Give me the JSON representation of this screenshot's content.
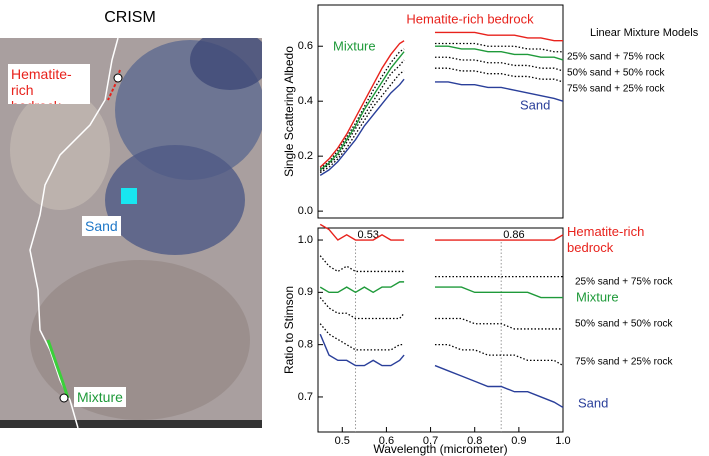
{
  "image": {
    "title": "CRISM",
    "labels": [
      {
        "text": "Hematite-rich bedrock",
        "color": "#e8221c"
      },
      {
        "text": "Sand",
        "color": "#1f78c8"
      },
      {
        "text": "Mixture",
        "color": "#1f9a3a"
      }
    ]
  },
  "chart_data": [
    {
      "type": "line",
      "ylabel": "Single Scattering Albedo",
      "legend_title": "Linear Mixture Models",
      "x": [
        0.45,
        0.47,
        0.49,
        0.51,
        0.53,
        0.55,
        0.57,
        0.59,
        0.61,
        0.63,
        0.64,
        0.675,
        0.71,
        0.74,
        0.77,
        0.8,
        0.83,
        0.86,
        0.89,
        0.92,
        0.95,
        0.98,
        1.0
      ],
      "xlim": [
        0.445,
        1.0
      ],
      "ylim": [
        -0.025,
        0.75
      ],
      "yticks": [
        {
          "value": 0,
          "label": "0.0"
        },
        0.2,
        0.4,
        0.6
      ],
      "series": [
        {
          "name": "Hematite-rich bedrock",
          "color": "#e8221c",
          "line_style": "solid",
          "values": [
            0.16,
            0.19,
            0.23,
            0.28,
            0.34,
            0.4,
            0.46,
            0.52,
            0.57,
            0.61,
            0.62,
            null,
            0.65,
            0.65,
            0.65,
            0.65,
            0.64,
            0.64,
            0.64,
            0.63,
            0.63,
            0.62,
            0.62
          ]
        },
        {
          "name": "25% sand + 75% rock",
          "color": "#000000",
          "line_style": "dotted",
          "values": [
            0.155,
            0.18,
            0.22,
            0.27,
            0.32,
            0.38,
            0.44,
            0.49,
            0.54,
            0.58,
            0.59,
            null,
            0.61,
            0.61,
            0.61,
            0.61,
            0.6,
            0.6,
            0.6,
            0.59,
            0.59,
            0.58,
            0.58
          ]
        },
        {
          "name": "Mixture",
          "color": "#1f9a3a",
          "line_style": "solid",
          "values": [
            0.15,
            0.175,
            0.21,
            0.26,
            0.31,
            0.37,
            0.42,
            0.47,
            0.52,
            0.56,
            0.58,
            null,
            0.6,
            0.6,
            0.59,
            0.59,
            0.58,
            0.58,
            0.57,
            0.57,
            0.56,
            0.56,
            0.55
          ]
        },
        {
          "name": "50% sand + 50% rock",
          "color": "#000000",
          "line_style": "dotted",
          "values": [
            0.145,
            0.17,
            0.2,
            0.25,
            0.3,
            0.35,
            0.4,
            0.45,
            0.5,
            0.53,
            0.55,
            null,
            0.56,
            0.56,
            0.55,
            0.55,
            0.54,
            0.54,
            0.53,
            0.53,
            0.52,
            0.52,
            0.51
          ]
        },
        {
          "name": "75% sand + 25% rock",
          "color": "#000000",
          "line_style": "dotted",
          "values": [
            0.14,
            0.16,
            0.19,
            0.23,
            0.28,
            0.33,
            0.38,
            0.42,
            0.46,
            0.5,
            0.51,
            null,
            0.52,
            0.52,
            0.51,
            0.51,
            0.5,
            0.5,
            0.49,
            0.49,
            0.48,
            0.48,
            0.47
          ]
        },
        {
          "name": "Sand",
          "color": "#2a3f9a",
          "line_style": "solid",
          "values": [
            0.13,
            0.15,
            0.18,
            0.22,
            0.26,
            0.31,
            0.35,
            0.39,
            0.43,
            0.46,
            0.48,
            null,
            0.47,
            0.47,
            0.46,
            0.46,
            0.45,
            0.45,
            0.44,
            0.43,
            0.42,
            0.41,
            0.4
          ]
        }
      ]
    },
    {
      "type": "line",
      "ylabel": "Ratio to Stimson",
      "xlabel": "Wavelength (micrometer)",
      "x": [
        0.45,
        0.47,
        0.49,
        0.51,
        0.53,
        0.55,
        0.57,
        0.59,
        0.61,
        0.63,
        0.64,
        0.675,
        0.71,
        0.74,
        0.77,
        0.8,
        0.83,
        0.86,
        0.89,
        0.92,
        0.95,
        0.98,
        1.0
      ],
      "xlim": [
        0.445,
        1.0
      ],
      "ylim": [
        0.633,
        1.023
      ],
      "xticks": [
        0.5,
        0.6,
        0.7,
        0.8,
        0.9,
        {
          "value": 1,
          "label": "1.0"
        }
      ],
      "yticks": [
        0.7,
        0.8,
        0.9,
        {
          "value": 1,
          "label": "1.0"
        }
      ],
      "vlines": [
        0.53,
        0.86
      ],
      "series": [
        {
          "name": "Hematite-rich bedrock",
          "color": "#e8221c",
          "line_style": "solid",
          "values": [
            1.03,
            1.02,
            1.0,
            1.01,
            1.0,
            1.0,
            1.0,
            1.01,
            1.0,
            1.0,
            1.0,
            null,
            1.0,
            1.0,
            1.0,
            1.0,
            1.0,
            1.0,
            1.0,
            1.0,
            1.0,
            1.0,
            1.01
          ]
        },
        {
          "name": "25% sand + 75% rock",
          "color": "#000000",
          "line_style": "dotted",
          "values": [
            0.97,
            0.95,
            0.94,
            0.95,
            0.94,
            0.94,
            0.94,
            0.94,
            0.94,
            0.94,
            0.94,
            null,
            0.93,
            0.93,
            0.93,
            0.93,
            0.93,
            0.93,
            0.93,
            0.93,
            0.93,
            0.93,
            0.93
          ]
        },
        {
          "name": "Mixture",
          "color": "#1f9a3a",
          "line_style": "solid",
          "values": [
            0.91,
            0.9,
            0.9,
            0.91,
            0.9,
            0.91,
            0.9,
            0.91,
            0.91,
            0.92,
            0.92,
            null,
            0.91,
            0.91,
            0.91,
            0.9,
            0.9,
            0.9,
            0.9,
            0.9,
            0.89,
            0.89,
            0.89
          ]
        },
        {
          "name": "50% sand + 50% rock",
          "color": "#000000",
          "line_style": "dotted",
          "values": [
            0.89,
            0.87,
            0.86,
            0.86,
            0.85,
            0.85,
            0.85,
            0.85,
            0.85,
            0.85,
            0.86,
            null,
            0.85,
            0.85,
            0.85,
            0.84,
            0.84,
            0.84,
            0.83,
            0.83,
            0.83,
            0.83,
            0.83
          ]
        },
        {
          "name": "75% sand + 25% rock",
          "color": "#000000",
          "line_style": "dotted",
          "values": [
            0.84,
            0.82,
            0.81,
            0.8,
            0.79,
            0.79,
            0.79,
            0.79,
            0.79,
            0.8,
            0.8,
            null,
            0.8,
            0.8,
            0.79,
            0.79,
            0.78,
            0.78,
            0.78,
            0.77,
            0.77,
            0.77,
            0.76
          ]
        },
        {
          "name": "Sand",
          "color": "#2a3f9a",
          "line_style": "solid",
          "values": [
            0.82,
            0.78,
            0.77,
            0.77,
            0.76,
            0.76,
            0.77,
            0.76,
            0.76,
            0.77,
            0.78,
            null,
            0.76,
            0.75,
            0.74,
            0.73,
            0.72,
            0.72,
            0.71,
            0.71,
            0.7,
            0.69,
            0.68
          ]
        }
      ]
    }
  ]
}
